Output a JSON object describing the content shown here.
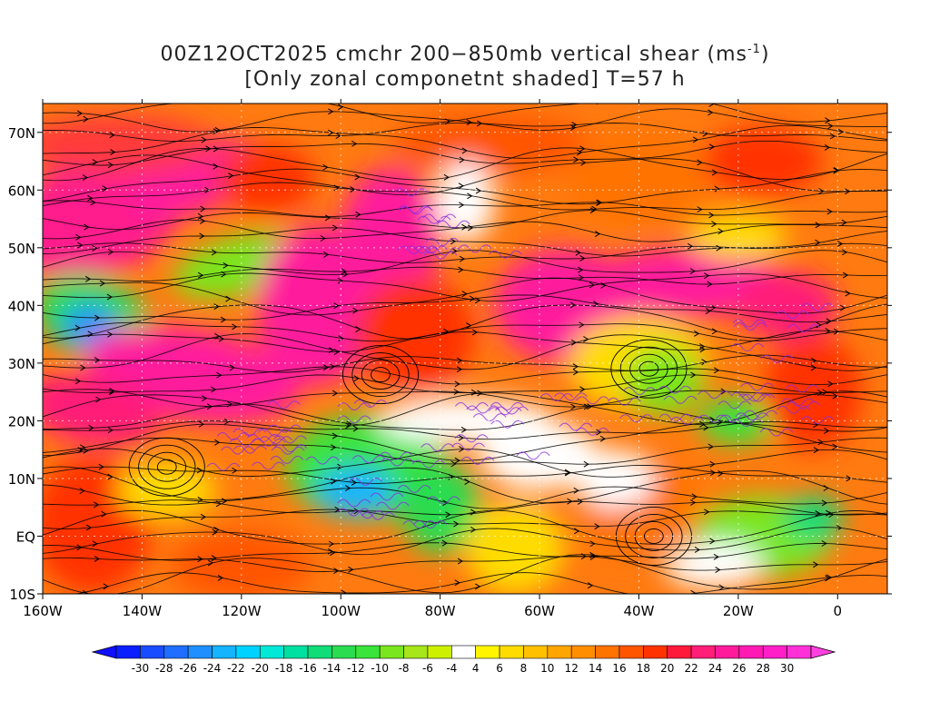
{
  "title": {
    "line1_prefix": "00Z12OCT2025 cmchr 200−850mb vertical shear (ms",
    "line1_sup": "-1",
    "line1_suffix": ")",
    "line2": "[Only zonal componetnt shaded] T=57 h"
  },
  "map": {
    "lon_range": [
      -160,
      10
    ],
    "lat_range": [
      -10,
      75
    ],
    "lon_ticks": [
      {
        "value": -160,
        "label": "160W"
      },
      {
        "value": -140,
        "label": "140W"
      },
      {
        "value": -120,
        "label": "120W"
      },
      {
        "value": -100,
        "label": "100W"
      },
      {
        "value": -80,
        "label": "80W"
      },
      {
        "value": -60,
        "label": "60W"
      },
      {
        "value": -40,
        "label": "40W"
      },
      {
        "value": -20,
        "label": "20W"
      },
      {
        "value": 0,
        "label": "0"
      }
    ],
    "lat_ticks": [
      {
        "value": 70,
        "label": "70N"
      },
      {
        "value": 60,
        "label": "60N"
      },
      {
        "value": 50,
        "label": "50N"
      },
      {
        "value": 40,
        "label": "40N"
      },
      {
        "value": 30,
        "label": "30N"
      },
      {
        "value": 20,
        "label": "20N"
      },
      {
        "value": 10,
        "label": "10N"
      },
      {
        "value": 0,
        "label": "EQ"
      },
      {
        "value": -10,
        "label": "10S"
      }
    ],
    "shaded_variable": "zonal vertical shear (m/s)",
    "streamlines": true,
    "coastlines": true
  },
  "colorbar": {
    "labels": [
      "-30",
      "-28",
      "-26",
      "-24",
      "-22",
      "-20",
      "-18",
      "-16",
      "-14",
      "-12",
      "-10",
      "-8",
      "-6",
      "-4",
      "4",
      "6",
      "8",
      "10",
      "12",
      "14",
      "16",
      "18",
      "20",
      "22",
      "24",
      "26",
      "28",
      "30"
    ],
    "colors": [
      "#0a1fff",
      "#1a4cff",
      "#1f6eff",
      "#1f8fff",
      "#14b4ff",
      "#00d2ff",
      "#00e8d8",
      "#00e0a0",
      "#10dc78",
      "#2adc50",
      "#3ae43a",
      "#7ae61e",
      "#a6e61a",
      "#ccf000",
      "#ffffff",
      "#fff500",
      "#ffdc00",
      "#ffc000",
      "#ffa500",
      "#ff8f00",
      "#ff7300",
      "#ff5500",
      "#ff3200",
      "#ff1a3c",
      "#ff1e78",
      "#ff1a9c",
      "#ff1ab4",
      "#ff1ec8",
      "#ff30d8"
    ],
    "low_extend_color": "#1010ff",
    "high_extend_color": "#ff40e0"
  }
}
